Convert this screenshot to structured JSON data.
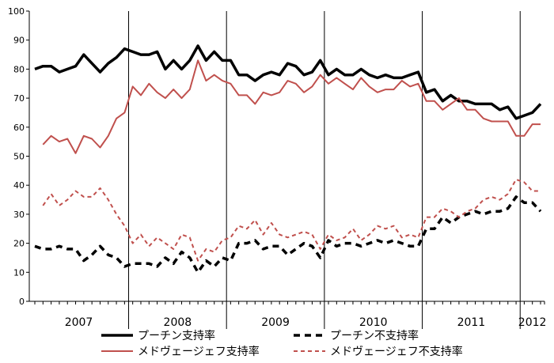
{
  "chart_data": {
    "type": "line",
    "title": "",
    "xlabel": "",
    "ylabel": "",
    "ylim": [
      0,
      100
    ],
    "y_ticks": [
      0,
      10,
      20,
      30,
      40,
      50,
      60,
      70,
      80,
      90,
      100
    ],
    "grid": false,
    "legend_position": "bottom",
    "x": [
      "2007-01",
      "2007-02",
      "2007-03",
      "2007-04",
      "2007-05",
      "2007-06",
      "2007-07",
      "2007-08",
      "2007-09",
      "2007-10",
      "2007-11",
      "2007-12",
      "2008-01",
      "2008-02",
      "2008-03",
      "2008-04",
      "2008-05",
      "2008-06",
      "2008-07",
      "2008-08",
      "2008-09",
      "2008-10",
      "2008-11",
      "2008-12",
      "2009-01",
      "2009-02",
      "2009-03",
      "2009-04",
      "2009-05",
      "2009-06",
      "2009-07",
      "2009-08",
      "2009-09",
      "2009-10",
      "2009-11",
      "2009-12",
      "2010-01",
      "2010-02",
      "2010-03",
      "2010-04",
      "2010-05",
      "2010-06",
      "2010-07",
      "2010-08",
      "2010-09",
      "2010-10",
      "2010-11",
      "2010-12",
      "2011-01",
      "2011-02",
      "2011-03",
      "2011-04",
      "2011-05",
      "2011-06",
      "2011-07",
      "2011-08",
      "2011-09",
      "2011-10",
      "2011-11",
      "2011-12",
      "2012-01",
      "2012-02",
      "2012-03"
    ],
    "year_labels": [
      "2007",
      "2008",
      "2009",
      "2010",
      "2011",
      "2012"
    ],
    "series": [
      {
        "name": "プーチン支持率",
        "color": "#000000",
        "style": "solid",
        "values": [
          80,
          81,
          81,
          79,
          80,
          81,
          85,
          82,
          79,
          82,
          84,
          87,
          86,
          85,
          85,
          86,
          80,
          83,
          80,
          83,
          88,
          83,
          86,
          83,
          83,
          78,
          78,
          76,
          78,
          79,
          78,
          82,
          81,
          78,
          79,
          83,
          78,
          80,
          78,
          78,
          80,
          78,
          77,
          78,
          77,
          77,
          78,
          79,
          72,
          73,
          69,
          71,
          69,
          69,
          68,
          68,
          68,
          66,
          67,
          63,
          64,
          65,
          68
        ]
      },
      {
        "name": "プーチン不支持率",
        "color": "#000000",
        "style": "dashed",
        "values": [
          19,
          18,
          18,
          19,
          18,
          18,
          14,
          16,
          19,
          16,
          15,
          12,
          13,
          13,
          13,
          12,
          15,
          13,
          17,
          15,
          10,
          14,
          12,
          15,
          14,
          20,
          20,
          21,
          18,
          19,
          19,
          16,
          18,
          20,
          19,
          15,
          21,
          19,
          20,
          20,
          19,
          20,
          21,
          20,
          21,
          20,
          19,
          19,
          25,
          25,
          29,
          27,
          29,
          30,
          31,
          30,
          31,
          31,
          32,
          36,
          34,
          34,
          31
        ]
      },
      {
        "name": "メドヴェージェフ支持率",
        "color": "#c0504d",
        "style": "solid",
        "values": [
          null,
          54,
          57,
          55,
          56,
          51,
          57,
          56,
          53,
          57,
          63,
          65,
          74,
          71,
          75,
          72,
          70,
          73,
          70,
          73,
          83,
          76,
          78,
          76,
          75,
          71,
          71,
          68,
          72,
          71,
          72,
          76,
          75,
          72,
          74,
          78,
          75,
          77,
          75,
          73,
          77,
          74,
          72,
          73,
          73,
          76,
          74,
          75,
          69,
          69,
          66,
          68,
          70,
          66,
          66,
          63,
          62,
          62,
          62,
          57,
          57,
          61,
          61
        ]
      },
      {
        "name": "メドヴェージェフ不支持率",
        "color": "#c0504d",
        "style": "dashed",
        "values": [
          null,
          33,
          37,
          33,
          35,
          38,
          36,
          36,
          39,
          35,
          30,
          26,
          20,
          23,
          19,
          22,
          20,
          18,
          23,
          22,
          14,
          18,
          17,
          21,
          22,
          26,
          25,
          28,
          23,
          27,
          23,
          22,
          23,
          24,
          23,
          18,
          23,
          21,
          22,
          25,
          21,
          23,
          26,
          25,
          26,
          22,
          23,
          22,
          29,
          29,
          32,
          31,
          29,
          31,
          32,
          35,
          36,
          35,
          37,
          42,
          41,
          38,
          38
        ]
      }
    ]
  }
}
